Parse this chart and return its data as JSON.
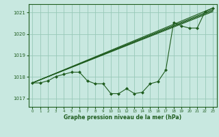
{
  "title": "Graphe pression niveau de la mer (hPa)",
  "background_color": "#c8e8e0",
  "grid_color": "#98c8b8",
  "line_color": "#1e5c1e",
  "ylim": [
    1016.6,
    1021.4
  ],
  "xlim": [
    -0.5,
    23.5
  ],
  "yticks": [
    1017,
    1018,
    1019,
    1020,
    1021
  ],
  "xticks": [
    0,
    1,
    2,
    3,
    4,
    5,
    6,
    7,
    8,
    9,
    10,
    11,
    12,
    13,
    14,
    15,
    16,
    17,
    18,
    19,
    20,
    21,
    22,
    23
  ],
  "straight_lines": [
    [
      [
        0,
        1017.72
      ],
      [
        23,
        1021.05
      ]
    ],
    [
      [
        0,
        1017.72
      ],
      [
        23,
        1021.1
      ]
    ],
    [
      [
        0,
        1017.72
      ],
      [
        23,
        1021.15
      ]
    ],
    [
      [
        0,
        1017.72
      ],
      [
        23,
        1021.22
      ]
    ]
  ],
  "main_series_x": [
    0,
    1,
    2,
    3,
    4,
    5,
    6,
    7,
    8,
    9,
    10,
    11,
    12,
    13,
    14,
    15,
    16,
    17,
    18,
    19,
    20,
    21,
    22,
    23
  ],
  "main_series_y": [
    1017.72,
    1017.72,
    1017.82,
    1018.02,
    1018.12,
    1018.22,
    1018.22,
    1017.82,
    1017.68,
    1017.68,
    1017.22,
    1017.22,
    1017.45,
    1017.22,
    1017.28,
    1017.68,
    1017.78,
    1018.32,
    1020.55,
    1020.38,
    1020.28,
    1020.28,
    1021.05,
    1021.22
  ]
}
